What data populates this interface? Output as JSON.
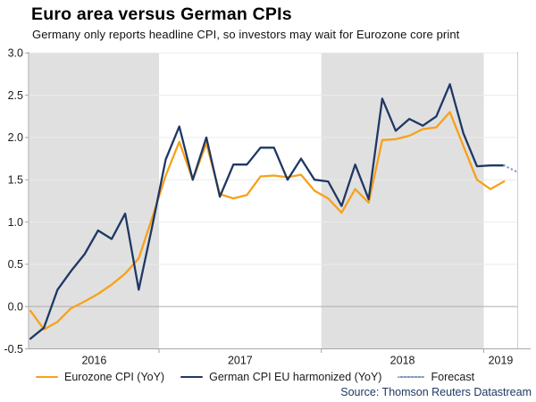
{
  "header": {
    "title": "Euro area versus German CPIs",
    "subtitle": "Germany only reports headline CPI, so investors may wait for Eurozone core print"
  },
  "source": "Source: Thomson Reuters Datastream",
  "colors": {
    "eurozone": "#F7A11A",
    "german": "#1F3864",
    "forecast": "#7F99BF",
    "shaded_band": "#E0E0E0",
    "gridline": "#EBEBEB",
    "zero_line": "#ADADAD",
    "axis": "#A6A6A6",
    "tick_text": "#1a1a1a",
    "source_text": "#1F3864"
  },
  "legend": [
    {
      "label": "Eurozone CPI (YoY)",
      "color": "#F7A11A",
      "style": "solid"
    },
    {
      "label": "German CPI EU harmonized (YoY)",
      "color": "#1F3864",
      "style": "solid"
    },
    {
      "label": "Forecast",
      "color": "#7F99BF",
      "style": "dotted"
    }
  ],
  "chart_data": {
    "type": "line",
    "title": "Euro area versus German CPIs",
    "x_unit": "month",
    "months": [
      "2016-03",
      "2016-04",
      "2016-05",
      "2016-06",
      "2016-07",
      "2016-08",
      "2016-09",
      "2016-10",
      "2016-11",
      "2016-12",
      "2017-01",
      "2017-02",
      "2017-03",
      "2017-04",
      "2017-05",
      "2017-06",
      "2017-07",
      "2017-08",
      "2017-09",
      "2017-10",
      "2017-11",
      "2017-12",
      "2018-01",
      "2018-02",
      "2018-03",
      "2018-04",
      "2018-05",
      "2018-06",
      "2018-07",
      "2018-08",
      "2018-09",
      "2018-10",
      "2018-11",
      "2018-12",
      "2019-01",
      "2019-02"
    ],
    "series": [
      {
        "name": "Eurozone CPI (YoY)",
        "color": "#F7A11A",
        "values": [
          -0.05,
          -0.27,
          -0.18,
          -0.02,
          0.06,
          0.15,
          0.26,
          0.39,
          0.57,
          1.05,
          1.55,
          1.95,
          1.5,
          1.93,
          1.33,
          1.28,
          1.32,
          1.54,
          1.55,
          1.53,
          1.56,
          1.37,
          1.28,
          1.11,
          1.39,
          1.23,
          1.97,
          1.98,
          2.02,
          2.1,
          2.12,
          2.3,
          1.9,
          1.5,
          1.39,
          1.48
        ]
      },
      {
        "name": "German CPI EU harmonized (YoY)",
        "color": "#1F3864",
        "values": [
          -0.38,
          -0.25,
          0.2,
          0.42,
          0.62,
          0.9,
          0.8,
          1.1,
          0.2,
          0.95,
          1.74,
          2.13,
          1.5,
          2.0,
          1.3,
          1.68,
          1.68,
          1.88,
          1.88,
          1.5,
          1.75,
          1.5,
          1.48,
          1.19,
          1.68,
          1.27,
          2.46,
          2.08,
          2.22,
          2.14,
          2.25,
          2.63,
          2.05,
          1.66,
          1.67,
          1.67
        ]
      }
    ],
    "forecast": {
      "name": "Forecast",
      "color": "#7F99BF",
      "months": [
        "2019-02",
        "2019-03"
      ],
      "values": [
        1.67,
        1.59
      ]
    },
    "y_axis": {
      "min": -0.5,
      "max": 3.0,
      "step": 0.5,
      "tick_labels": [
        "3.0",
        "2.5",
        "2.0",
        "1.5",
        "1.0",
        "0.5",
        "0.0",
        "-0.5"
      ]
    },
    "x_axis": {
      "year_labels": [
        "2016",
        "2017",
        "2018",
        "2019"
      ],
      "shaded_years": [
        "2016",
        "2018"
      ]
    },
    "grid": true,
    "legend_position": "bottom"
  }
}
